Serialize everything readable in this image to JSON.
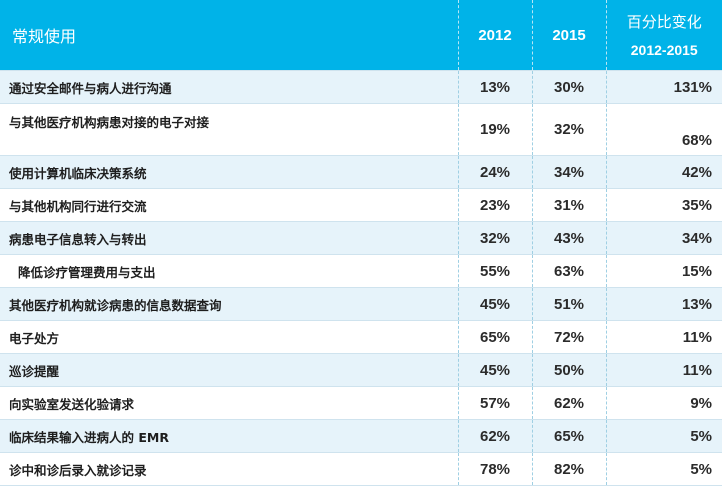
{
  "header": {
    "category": "常规使用",
    "year1": "2012",
    "year2": "2015",
    "change_line1": "百分比变化",
    "change_line2": "2012-2015"
  },
  "rows": [
    {
      "label": "通过安全邮件与病人进行沟通",
      "y2012": "13%",
      "y2015": "30%",
      "change": "131%"
    },
    {
      "label": "与其他医疗机构病患对接的电子对接",
      "y2012": "19%",
      "y2015": "32%",
      "change": "68%"
    },
    {
      "label": "使用计算机临床决策系统",
      "y2012": "24%",
      "y2015": "34%",
      "change": "42%"
    },
    {
      "label": "与其他机构同行进行交流",
      "y2012": "23%",
      "y2015": "31%",
      "change": "35%"
    },
    {
      "label": "病患电子信息转入与转出",
      "y2012": "32%",
      "y2015": "43%",
      "change": "34%"
    },
    {
      "label": "降低诊疗管理费用与支出",
      "y2012": "55%",
      "y2015": "63%",
      "change": "15%"
    },
    {
      "label": "其他医疗机构就诊病患的信息数据查询",
      "y2012": "45%",
      "y2015": "51%",
      "change": "13%"
    },
    {
      "label": "电子处方",
      "y2012": "65%",
      "y2015": "72%",
      "change": "11%"
    },
    {
      "label": "巡诊提醒",
      "y2012": "45%",
      "y2015": "50%",
      "change": "11%"
    },
    {
      "label": "向实验室发送化验请求",
      "y2012": "57%",
      "y2015": "62%",
      "change": "9%"
    },
    {
      "label": "临床结果输入进病人的 EMR",
      "y2012": "62%",
      "y2015": "65%",
      "change": "5%"
    },
    {
      "label": "诊中和诊后录入就诊记录",
      "y2012": "78%",
      "y2015": "82%",
      "change": "5%"
    }
  ],
  "colors": {
    "header_bg": "#00b3e8",
    "row_alt_bg": "#e6f3fa"
  }
}
